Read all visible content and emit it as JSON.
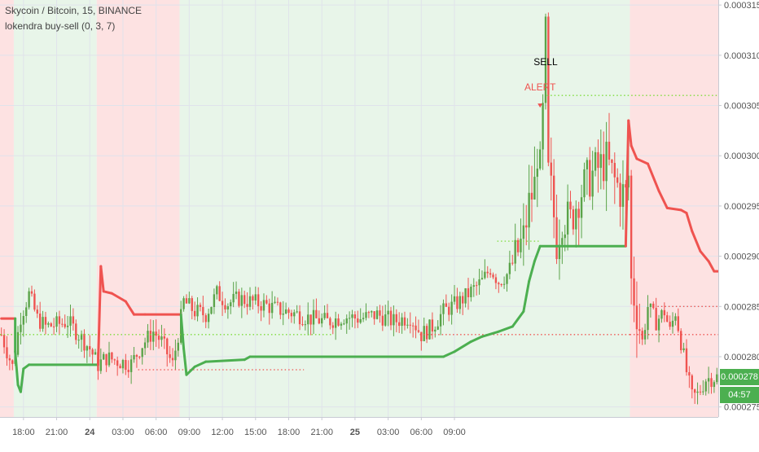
{
  "header": {
    "symbol": "Skycoin / Bitcoin, 15, BINANCE",
    "indicator": "lokendra buy-sell (0, 3, 7)"
  },
  "colors": {
    "up": "#6ba583",
    "upBar": "#5aa349",
    "down": "#ef5350",
    "trailBull": "#4caf50",
    "trailBear": "#ef5350",
    "bgBull": "#e8f5e9",
    "bgBear": "#fde2e2",
    "priceTag": "#4caf50"
  },
  "chart_data": {
    "type": "candlestick",
    "title": "Skycoin / Bitcoin, 15, BINANCE",
    "indicator": "lokendra buy-sell (0, 3, 7)",
    "ylim": [
      0.000274,
      0.0003155
    ],
    "y_ticks": [
      "0.000315",
      "0.000310",
      "0.000305",
      "0.000300",
      "0.000295",
      "0.000290",
      "0.000285",
      "0.000280",
      "0.000275"
    ],
    "y_tick_values": [
      0.000315,
      0.00031,
      0.000305,
      0.0003,
      0.000295,
      0.00029,
      0.000285,
      0.00028,
      0.000275
    ],
    "x_ticks": [
      "18:00",
      "21:00",
      "24",
      "03:00",
      "06:00",
      "09:00",
      "12:00",
      "15:00",
      "18:00",
      "21:00",
      "25",
      "03:00",
      "06:00",
      "09:00"
    ],
    "x_tick_bold": [
      false,
      false,
      true,
      false,
      false,
      false,
      false,
      false,
      false,
      false,
      true,
      false,
      false,
      false
    ],
    "bar_count": 260,
    "bars_per_tick": 12,
    "x_tick_start_index": 8,
    "regions": [
      {
        "from": 0,
        "to": 5,
        "state": "bear"
      },
      {
        "from": 5,
        "to": 35,
        "state": "bull"
      },
      {
        "from": 35,
        "to": 65,
        "state": "bear"
      },
      {
        "from": 65,
        "to": 228,
        "state": "bull"
      },
      {
        "from": 228,
        "to": 260,
        "state": "bear"
      }
    ],
    "trail_line": [
      [
        0,
        0.0002838,
        "bear"
      ],
      [
        5,
        0.0002838,
        "bear"
      ],
      [
        5,
        0.0002805,
        "bull"
      ],
      [
        6,
        0.0002772,
        "bull"
      ],
      [
        7,
        0.0002765,
        "bull"
      ],
      [
        8,
        0.0002788,
        "bull"
      ],
      [
        10,
        0.0002792,
        "bull"
      ],
      [
        35,
        0.0002792,
        "bull"
      ],
      [
        36,
        0.000289,
        "bear"
      ],
      [
        37,
        0.0002865,
        "bear"
      ],
      [
        40,
        0.0002863,
        "bear"
      ],
      [
        45,
        0.0002855,
        "bear"
      ],
      [
        48,
        0.0002842,
        "bear"
      ],
      [
        52,
        0.0002842,
        "bear"
      ],
      [
        65,
        0.0002842,
        "bear"
      ],
      [
        66,
        0.0002808,
        "bull"
      ],
      [
        67,
        0.0002782,
        "bull"
      ],
      [
        70,
        0.000279,
        "bull"
      ],
      [
        74,
        0.0002795,
        "bull"
      ],
      [
        88,
        0.0002797,
        "bull"
      ],
      [
        90,
        0.00028,
        "bull"
      ],
      [
        160,
        0.00028,
        "bull"
      ],
      [
        164,
        0.0002805,
        "bull"
      ],
      [
        170,
        0.0002815,
        "bull"
      ],
      [
        174,
        0.000282,
        "bull"
      ],
      [
        180,
        0.0002825,
        "bull"
      ],
      [
        185,
        0.000283,
        "bull"
      ],
      [
        189,
        0.0002845,
        "bull"
      ],
      [
        191,
        0.0002875,
        "bull"
      ],
      [
        193,
        0.0002895,
        "bull"
      ],
      [
        195,
        0.000291,
        "bull"
      ],
      [
        226,
        0.000291,
        "bull"
      ],
      [
        227,
        0.0003035,
        "bear"
      ],
      [
        228,
        0.000301,
        "bear"
      ],
      [
        230,
        0.0002997,
        "bear"
      ],
      [
        234,
        0.0002992,
        "bear"
      ],
      [
        238,
        0.0002965,
        "bear"
      ],
      [
        241,
        0.0002948,
        "bear"
      ],
      [
        246,
        0.0002946,
        "bear"
      ],
      [
        248,
        0.0002943,
        "bear"
      ],
      [
        250,
        0.0002925,
        "bear"
      ],
      [
        253,
        0.0002905,
        "bear"
      ],
      [
        256,
        0.0002895,
        "bear"
      ],
      [
        258,
        0.0002885,
        "bear"
      ],
      [
        260,
        0.0002885,
        "bear"
      ]
    ],
    "dotted_levels": [
      {
        "y": 0.0002822,
        "from": 0,
        "to": 120,
        "color": "up"
      },
      {
        "y": 0.0002787,
        "from": 50,
        "to": 110,
        "color": "down"
      },
      {
        "y": 0.0002822,
        "from": 152,
        "to": 228,
        "color": "down"
      },
      {
        "y": 0.0002915,
        "from": 180,
        "to": 195,
        "color": "up"
      },
      {
        "y": 0.000306,
        "from": 198,
        "to": 260,
        "color": "up"
      },
      {
        "y": 0.000285,
        "from": 238,
        "to": 260,
        "color": "down"
      },
      {
        "y": 0.0002822,
        "from": 228,
        "to": 260,
        "color": "down"
      }
    ],
    "signals": [
      {
        "index": 195,
        "price": 0.0003065,
        "label": "ALERT",
        "color": "#ef5350"
      },
      {
        "index": 197,
        "price": 0.000309,
        "label": "SELL",
        "color": "#000000"
      }
    ],
    "last_price": "0.000278",
    "last_price_value": 0.000278,
    "countdown": "04:57",
    "keypoints": [
      [
        0,
        0.0002822
      ],
      [
        4,
        0.000279
      ],
      [
        7,
        0.000284
      ],
      [
        10,
        0.0002862
      ],
      [
        13,
        0.0002838
      ],
      [
        16,
        0.000283
      ],
      [
        20,
        0.0002832
      ],
      [
        24,
        0.0002835
      ],
      [
        28,
        0.0002822
      ],
      [
        32,
        0.0002808
      ],
      [
        35,
        0.0002792
      ],
      [
        38,
        0.0002799
      ],
      [
        43,
        0.0002795
      ],
      [
        47,
        0.0002793
      ],
      [
        51,
        0.0002812
      ],
      [
        55,
        0.0002825
      ],
      [
        58,
        0.0002815
      ],
      [
        62,
        0.0002792
      ],
      [
        64,
        0.0002822
      ],
      [
        66,
        0.0002855
      ],
      [
        70,
        0.0002845
      ],
      [
        74,
        0.0002842
      ],
      [
        78,
        0.0002863
      ],
      [
        82,
        0.0002853
      ],
      [
        86,
        0.0002858
      ],
      [
        90,
        0.0002855
      ],
      [
        95,
        0.0002852
      ],
      [
        100,
        0.0002847
      ],
      [
        106,
        0.0002843
      ],
      [
        112,
        0.0002838
      ],
      [
        118,
        0.0002835
      ],
      [
        124,
        0.000284
      ],
      [
        130,
        0.0002838
      ],
      [
        136,
        0.0002842
      ],
      [
        142,
        0.0002835
      ],
      [
        148,
        0.000284
      ],
      [
        152,
        0.0002822
      ],
      [
        156,
        0.000283
      ],
      [
        160,
        0.0002845
      ],
      [
        166,
        0.0002855
      ],
      [
        170,
        0.0002865
      ],
      [
        174,
        0.0002875
      ],
      [
        177,
        0.0002888
      ],
      [
        180,
        0.0002875
      ],
      [
        183,
        0.0002882
      ],
      [
        186,
        0.0002898
      ],
      [
        189,
        0.0002918
      ],
      [
        191,
        0.0002952
      ],
      [
        193,
        0.000297
      ],
      [
        194,
        0.0003005
      ],
      [
        195,
        0.0002985
      ],
      [
        196,
        0.000304
      ],
      [
        197,
        0.000312
      ],
      [
        198,
        0.000298
      ],
      [
        199,
        0.0002965
      ],
      [
        201,
        0.0002915
      ],
      [
        203,
        0.000294
      ],
      [
        206,
        0.0002935
      ],
      [
        209,
        0.000296
      ],
      [
        212,
        0.0002975
      ],
      [
        215,
        0.0002985
      ],
      [
        219,
        0.0002995
      ],
      [
        222,
        0.0002975
      ],
      [
        224,
        0.0002965
      ],
      [
        226,
        0.000296
      ],
      [
        227,
        0.000298
      ],
      [
        228,
        0.0002875
      ],
      [
        230,
        0.0002845
      ],
      [
        232,
        0.0002815
      ],
      [
        234,
        0.000285
      ],
      [
        237,
        0.0002835
      ],
      [
        240,
        0.0002845
      ],
      [
        242,
        0.0002825
      ],
      [
        244,
        0.0002845
      ],
      [
        246,
        0.0002815
      ],
      [
        248,
        0.0002785
      ],
      [
        250,
        0.000276
      ],
      [
        252,
        0.0002762
      ],
      [
        255,
        0.0002778
      ],
      [
        260,
        0.000278
      ]
    ]
  }
}
